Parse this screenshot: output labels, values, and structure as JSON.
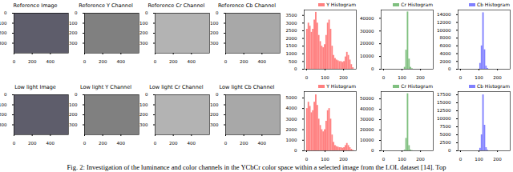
{
  "image_panels": [
    {
      "title": "Reference Image",
      "type": "image",
      "xlim": [
        0,
        600
      ],
      "ylim": [
        0,
        400
      ],
      "xticks": [
        0,
        200,
        400
      ],
      "yticks": [
        0,
        100,
        200,
        300
      ]
    },
    {
      "title": "Reference Y Channel",
      "type": "image",
      "xlim": [
        0,
        600
      ],
      "ylim": [
        0,
        400
      ],
      "xticks": [
        0,
        200,
        400
      ],
      "yticks": [
        0,
        100,
        200,
        300
      ]
    },
    {
      "title": "Reference Cr Channel",
      "type": "image",
      "xlim": [
        0,
        600
      ],
      "ylim": [
        0,
        400
      ],
      "xticks": [
        0,
        200,
        400
      ],
      "yticks": [
        0,
        100,
        200,
        300
      ]
    },
    {
      "title": "Reference Cb Channel",
      "type": "image",
      "xlim": [
        0,
        600
      ],
      "ylim": [
        0,
        400
      ],
      "xticks": [
        0,
        200,
        400
      ],
      "yticks": [
        0,
        100,
        200,
        300
      ]
    },
    {
      "title": "Low light Image",
      "type": "image",
      "xlim": [
        0,
        600
      ],
      "ylim": [
        0,
        400
      ],
      "xticks": [
        0,
        200,
        400
      ],
      "yticks": [
        0,
        100,
        200,
        300
      ]
    },
    {
      "title": "Low light Y Channel",
      "type": "image",
      "xlim": [
        0,
        600
      ],
      "ylim": [
        0,
        400
      ],
      "xticks": [
        0,
        200,
        400
      ],
      "yticks": [
        0,
        100,
        200,
        300
      ]
    },
    {
      "title": "Low light Cr Channel",
      "type": "image",
      "xlim": [
        0,
        600
      ],
      "ylim": [
        0,
        400
      ],
      "xticks": [
        0,
        200,
        400
      ],
      "yticks": [
        0,
        100,
        200,
        300
      ]
    },
    {
      "title": "Low light Cb Channel",
      "type": "image",
      "xlim": [
        0,
        600
      ],
      "ylim": [
        0,
        400
      ],
      "xticks": [
        0,
        200,
        400
      ],
      "yticks": [
        0,
        100,
        200,
        300
      ]
    }
  ],
  "chart_data": [
    {
      "type": "histogram",
      "legend": "upper right",
      "bins": [
        0,
        8,
        16,
        24,
        32,
        40,
        48,
        56,
        64,
        72,
        80,
        88,
        96,
        104,
        112,
        120,
        128,
        136,
        144,
        152,
        160,
        168,
        176,
        184,
        192,
        200,
        208,
        216,
        224,
        232,
        240,
        248,
        256
      ],
      "series": [
        {
          "name": "Y Histogram",
          "color": "#ff8080",
          "values": [
            2600,
            3000,
            2800,
            2400,
            2600,
            3200,
            3700,
            3000,
            2200,
            1800,
            1500,
            1400,
            1600,
            2200,
            3000,
            3200,
            2600,
            1500,
            900,
            700,
            600,
            550,
            500,
            500,
            450,
            500,
            800,
            1100,
            900,
            600,
            300,
            100
          ]
        }
      ],
      "xlim": [
        -12.8,
        268.8
      ],
      "xticks": [
        0,
        100,
        200
      ],
      "ylim": [
        0,
        3850
      ],
      "yticks": [
        0,
        500,
        1000,
        1500,
        2000,
        2500,
        3000,
        3500
      ]
    },
    {
      "type": "histogram",
      "legend": "upper right",
      "bins": [
        0,
        8,
        16,
        24,
        32,
        40,
        48,
        56,
        64,
        72,
        80,
        88,
        96,
        104,
        112,
        120,
        128,
        136,
        144,
        152,
        160,
        168,
        176,
        184,
        192,
        200,
        208,
        216,
        224,
        232,
        240,
        248,
        256
      ],
      "series": [
        {
          "name": "Cr Histogram",
          "color": "#80c080",
          "values": [
            0,
            0,
            0,
            0,
            0,
            0,
            0,
            0,
            0,
            0,
            0,
            0,
            0,
            0,
            1500,
            15000,
            45000,
            8000,
            1500,
            400,
            0,
            0,
            0,
            0,
            0,
            0,
            0,
            0,
            0,
            0,
            0,
            0
          ]
        }
      ],
      "xlim": [
        -12.8,
        268.8
      ],
      "xticks": [
        0,
        100,
        200
      ],
      "ylim": [
        0,
        46500
      ],
      "yticks": [
        0,
        10000,
        20000,
        30000,
        40000
      ]
    },
    {
      "type": "histogram",
      "legend": "upper right",
      "bins": [
        0,
        8,
        16,
        24,
        32,
        40,
        48,
        56,
        64,
        72,
        80,
        88,
        96,
        104,
        112,
        120,
        128,
        136,
        144,
        152,
        160,
        168,
        176,
        184,
        192,
        200,
        208,
        216,
        224,
        232,
        240,
        248,
        256
      ],
      "series": [
        {
          "name": "Cb Histogram",
          "color": "#8080ff",
          "values": [
            0,
            0,
            0,
            0,
            0,
            0,
            0,
            0,
            0,
            0,
            0,
            0,
            0,
            1500,
            6000,
            14500,
            5000,
            800,
            200,
            0,
            0,
            0,
            0,
            0,
            0,
            0,
            0,
            0,
            0,
            0,
            0,
            0
          ]
        }
      ],
      "xlim": [
        -12.8,
        268.8
      ],
      "xticks": [
        0,
        100,
        200
      ],
      "ylim": [
        0,
        15200
      ],
      "yticks": [
        0,
        2000,
        4000,
        6000,
        8000,
        10000,
        12000,
        14000
      ]
    },
    {
      "type": "histogram",
      "legend": "upper right",
      "bins": [
        0,
        8,
        16,
        24,
        32,
        40,
        48,
        56,
        64,
        72,
        80,
        88,
        96,
        104,
        112,
        120,
        128,
        136,
        144,
        152,
        160,
        168,
        176,
        184,
        192,
        200,
        208,
        216,
        224,
        232,
        240,
        248,
        256
      ],
      "series": [
        {
          "name": "Y Histogram",
          "color": "#ff8080",
          "values": [
            4000,
            4600,
            4200,
            3600,
            3800,
            4600,
            5300,
            4300,
            3000,
            2400,
            2000,
            1800,
            2000,
            2800,
            3800,
            4000,
            3000,
            1500,
            800,
            500,
            400,
            350,
            300,
            300,
            250,
            300,
            500,
            700,
            500,
            300,
            150,
            50
          ]
        }
      ],
      "xlim": [
        -12.8,
        268.8
      ],
      "xticks": [
        0,
        100,
        200
      ],
      "ylim": [
        0,
        5600
      ],
      "yticks": [
        0,
        1000,
        2000,
        3000,
        4000,
        5000
      ]
    },
    {
      "type": "histogram",
      "legend": "upper right",
      "bins": [
        0,
        8,
        16,
        24,
        32,
        40,
        48,
        56,
        64,
        72,
        80,
        88,
        96,
        104,
        112,
        120,
        128,
        136,
        144,
        152,
        160,
        168,
        176,
        184,
        192,
        200,
        208,
        216,
        224,
        232,
        240,
        248,
        256
      ],
      "series": [
        {
          "name": "Cr Histogram",
          "color": "#80c080",
          "values": [
            0,
            0,
            0,
            0,
            0,
            0,
            0,
            0,
            0,
            0,
            0,
            0,
            0,
            0,
            800,
            12000,
            55000,
            5000,
            800,
            200,
            0,
            0,
            0,
            0,
            0,
            0,
            0,
            0,
            0,
            0,
            0,
            0
          ]
        }
      ],
      "xlim": [
        -12.8,
        268.8
      ],
      "xticks": [
        0,
        100,
        200
      ],
      "ylim": [
        0,
        57000
      ],
      "yticks": [
        0,
        10000,
        20000,
        30000,
        40000,
        50000
      ]
    },
    {
      "type": "histogram",
      "legend": "upper right",
      "bins": [
        0,
        8,
        16,
        24,
        32,
        40,
        48,
        56,
        64,
        72,
        80,
        88,
        96,
        104,
        112,
        120,
        128,
        136,
        144,
        152,
        160,
        168,
        176,
        184,
        192,
        200,
        208,
        216,
        224,
        232,
        240,
        248,
        256
      ],
      "series": [
        {
          "name": "Cb Histogram",
          "color": "#8080ff",
          "values": [
            0,
            0,
            0,
            0,
            0,
            0,
            0,
            0,
            0,
            0,
            0,
            0,
            0,
            800,
            5000,
            17500,
            8000,
            1000,
            200,
            0,
            0,
            0,
            0,
            0,
            0,
            0,
            0,
            0,
            0,
            0,
            0,
            0
          ]
        }
      ],
      "xlim": [
        -12.8,
        268.8
      ],
      "xticks": [
        0,
        100,
        200
      ],
      "ylim": [
        0,
        18500
      ],
      "yticks": [
        0,
        2500,
        5000,
        7500,
        10000,
        12500,
        15000,
        17500
      ]
    }
  ],
  "caption": "Fig. 2: Investigation of the luminance and color channels in the YCbCr color space within a selected image from the LOL dataset [14]. Top"
}
